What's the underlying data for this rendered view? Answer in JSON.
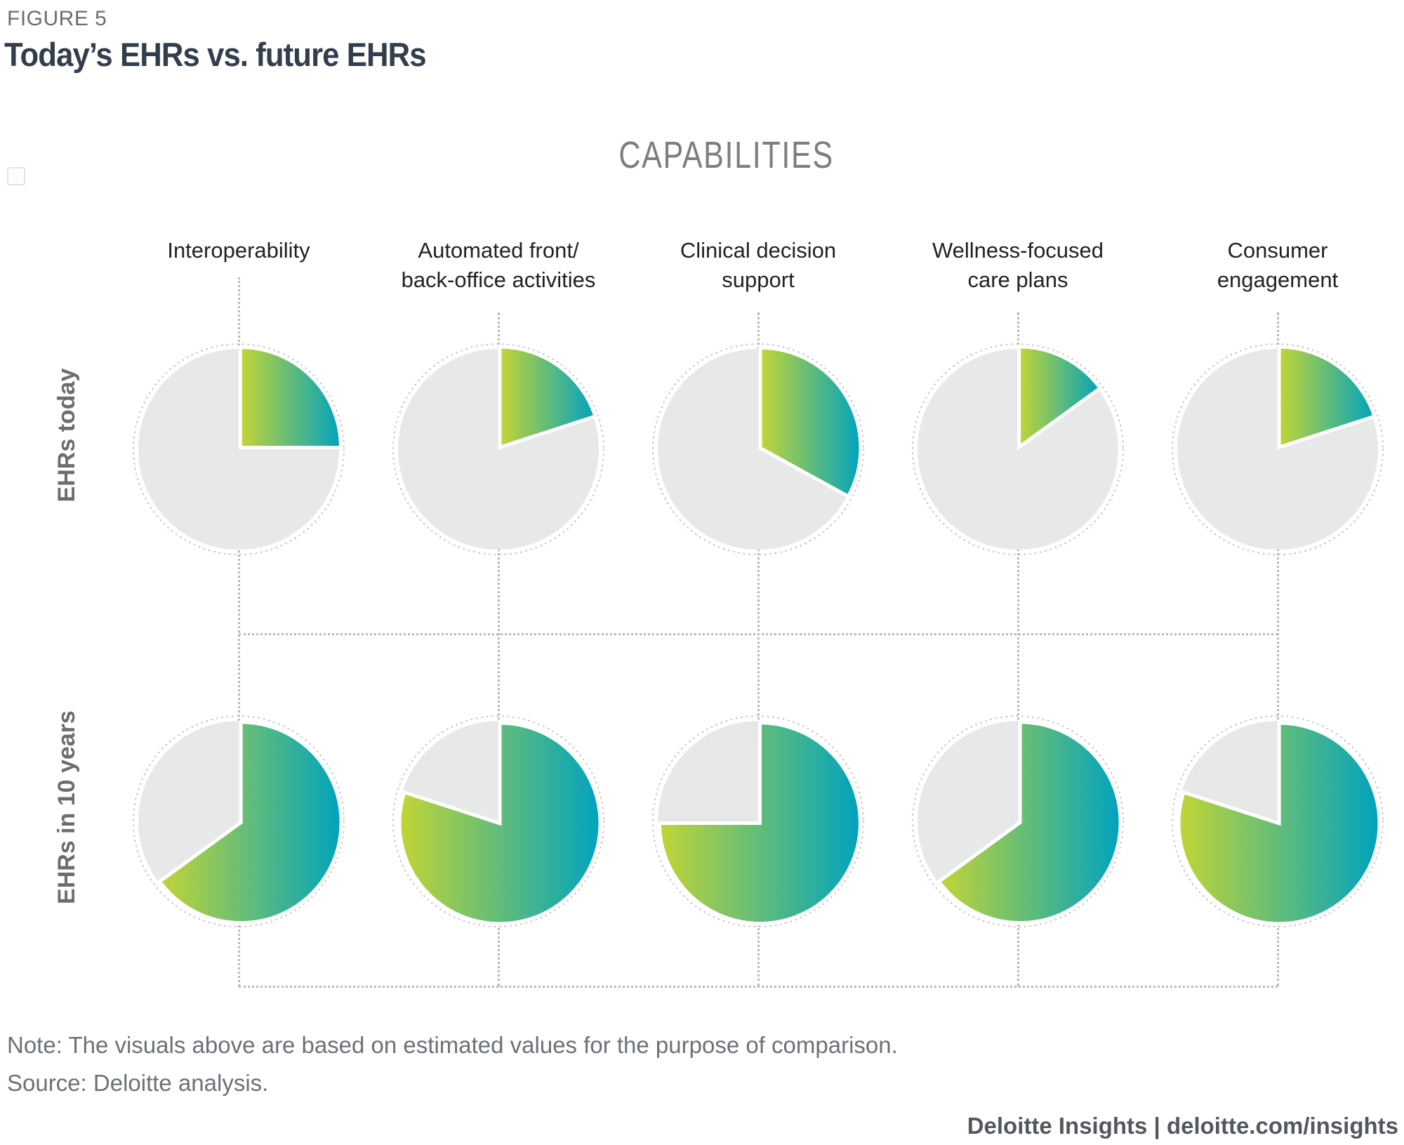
{
  "figure": {
    "label": "FIGURE 5",
    "title": "Today’s EHRs vs. future EHRs"
  },
  "group_header": "CAPABILITIES",
  "rows": [
    {
      "label": "EHRs today"
    },
    {
      "label": "EHRs in 10 years"
    }
  ],
  "columns": [
    "Interoperability",
    "Automated front/\nback-office activities",
    "Clinical decision\nsupport",
    "Wellness-focused\ncare plans",
    "Consumer\nengagement"
  ],
  "chart_data": {
    "type": "pie",
    "layout": "grid of 10 pies (2 rows x 5 columns), each pie shows estimated fraction of capability achieved",
    "group_label": "CAPABILITIES",
    "categories": [
      "Interoperability",
      "Automated front/back-office activities",
      "Clinical decision support",
      "Wellness-focused care plans",
      "Consumer engagement"
    ],
    "series": [
      {
        "name": "EHRs today",
        "values": [
          0.25,
          0.2,
          0.33,
          0.15,
          0.2
        ]
      },
      {
        "name": "EHRs in 10 years",
        "values": [
          0.65,
          0.8,
          0.75,
          0.65,
          0.8
        ]
      }
    ],
    "value_unit": "fraction of pie filled (estimated values)",
    "colors": {
      "remainder_gray": "#e7e8e8",
      "gradient_start": "#c3d535",
      "gradient_end": "#00a3bf",
      "dotted_guide": "#b9b9b9",
      "ring_dotted": "#c4c4c4"
    }
  },
  "note": "Note: The visuals above are based on estimated values for the purpose of comparison.",
  "source": "Source: Deloitte analysis.",
  "footer": "Deloitte Insights | deloitte.com/insights"
}
